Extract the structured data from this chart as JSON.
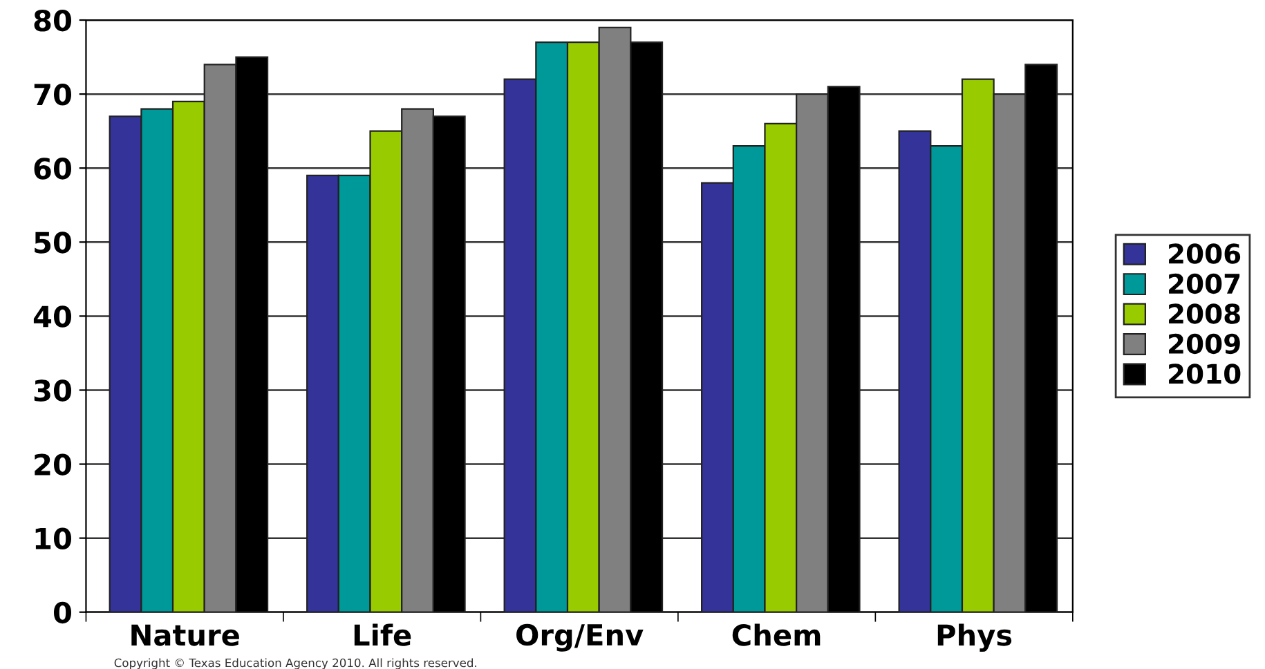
{
  "chart_data": {
    "type": "bar",
    "categories": [
      "Nature",
      "Life",
      "Org/Env",
      "Chem",
      "Phys"
    ],
    "series": [
      {
        "name": "2006",
        "color": "#333399",
        "values": [
          67,
          59,
          72,
          58,
          65
        ]
      },
      {
        "name": "2007",
        "color": "#009999",
        "values": [
          68,
          59,
          77,
          63,
          63
        ]
      },
      {
        "name": "2008",
        "color": "#99cc00",
        "values": [
          69,
          65,
          77,
          66,
          72
        ]
      },
      {
        "name": "2009",
        "color": "#808080",
        "values": [
          74,
          68,
          79,
          70,
          70
        ]
      },
      {
        "name": "2010",
        "color": "#000000",
        "values": [
          75,
          67,
          77,
          71,
          74
        ]
      }
    ],
    "ylim": [
      0,
      80
    ],
    "yticks": [
      0,
      10,
      20,
      30,
      40,
      50,
      60,
      70,
      80
    ],
    "grid": "y",
    "legend": "right",
    "annotations": [
      "Copyright © Texas Education Agency 2010. All rights reserved."
    ]
  }
}
